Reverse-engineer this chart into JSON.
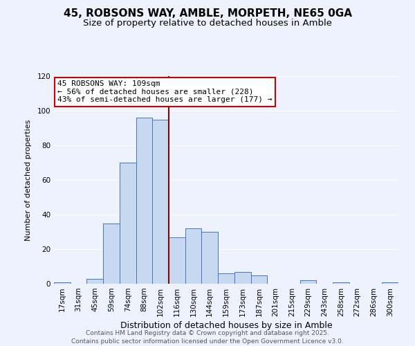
{
  "title": "45, ROBSONS WAY, AMBLE, MORPETH, NE65 0GA",
  "subtitle": "Size of property relative to detached houses in Amble",
  "xlabel": "Distribution of detached houses by size in Amble",
  "ylabel": "Number of detached properties",
  "bar_labels": [
    "17sqm",
    "31sqm",
    "45sqm",
    "59sqm",
    "74sqm",
    "88sqm",
    "102sqm",
    "116sqm",
    "130sqm",
    "144sqm",
    "159sqm",
    "173sqm",
    "187sqm",
    "201sqm",
    "215sqm",
    "229sqm",
    "243sqm",
    "258sqm",
    "272sqm",
    "286sqm",
    "300sqm"
  ],
  "bar_values": [
    1,
    0,
    3,
    35,
    70,
    96,
    95,
    27,
    32,
    30,
    6,
    7,
    5,
    0,
    0,
    2,
    0,
    1,
    0,
    0,
    1
  ],
  "ylim": [
    0,
    120
  ],
  "yticks": [
    0,
    20,
    40,
    60,
    80,
    100,
    120
  ],
  "bar_color": "#c6d9f0",
  "bar_edge_color": "#4472c4",
  "bg_color": "#eef2fc",
  "grid_color": "#ffffff",
  "vline_x_index": 6.5,
  "vline_color": "#8b0000",
  "annotation_title": "45 ROBSONS WAY: 109sqm",
  "annotation_line1": "← 56% of detached houses are smaller (228)",
  "annotation_line2": "43% of semi-detached houses are larger (177) →",
  "annotation_box_color": "#ffffff",
  "annotation_box_edge": "#cc0000",
  "footer_line1": "Contains HM Land Registry data © Crown copyright and database right 2025.",
  "footer_line2": "Contains public sector information licensed under the Open Government Licence v3.0.",
  "title_fontsize": 11,
  "subtitle_fontsize": 9.5,
  "xlabel_fontsize": 9,
  "ylabel_fontsize": 8,
  "tick_fontsize": 7.5,
  "footer_fontsize": 6.5,
  "annot_fontsize": 8
}
